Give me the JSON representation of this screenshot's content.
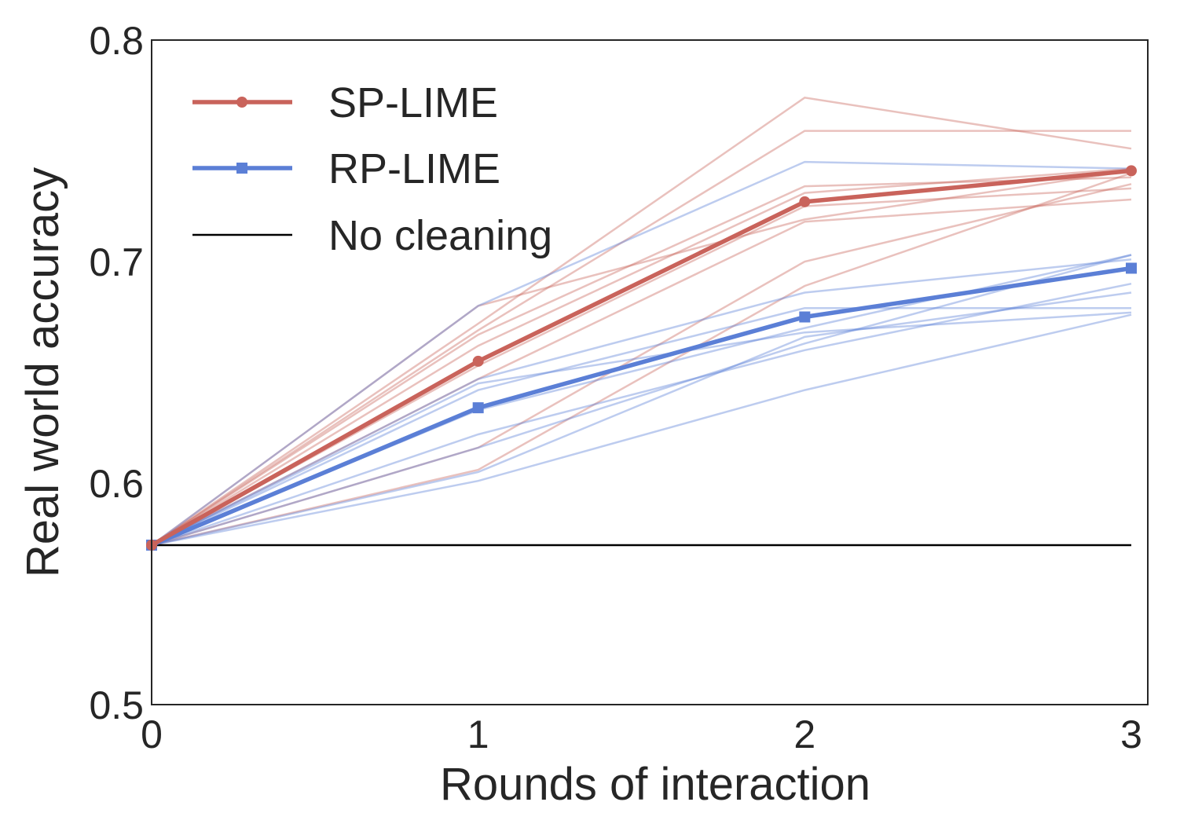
{
  "chart_data": {
    "type": "line",
    "xlabel": "Rounds of interaction",
    "ylabel": "Real world accuracy",
    "xlim": [
      0,
      3
    ],
    "ylim": [
      0.5,
      0.8
    ],
    "xticks": [
      0,
      1,
      2,
      3
    ],
    "xtick_labels": [
      "0",
      "1",
      "2",
      "3"
    ],
    "yticks": [
      0.5,
      0.6,
      0.7,
      0.8
    ],
    "ytick_labels": [
      "0.5",
      "0.6",
      "0.7",
      "0.8"
    ],
    "grid": false,
    "legend_position": "top-left",
    "x": [
      0,
      1,
      2,
      3
    ],
    "series": [
      {
        "name": "SP-LIME",
        "color": "#c9635b",
        "marker": "circle",
        "values": [
          0.572,
          0.655,
          0.727,
          0.741
        ]
      },
      {
        "name": "RP-LIME",
        "color": "#5b7fd6",
        "marker": "square",
        "values": [
          0.572,
          0.634,
          0.675,
          0.697
        ]
      },
      {
        "name": "No cleaning",
        "color": "#000000",
        "marker": "none",
        "values": [
          0.572,
          0.572,
          0.572,
          0.572
        ]
      }
    ],
    "individual_runs": {
      "SP-LIME": {
        "color": "#c9635b",
        "runs": [
          [
            0.572,
            0.68,
            0.719,
            0.741
          ],
          [
            0.572,
            0.672,
            0.774,
            0.751
          ],
          [
            0.572,
            0.669,
            0.759,
            0.759
          ],
          [
            0.572,
            0.667,
            0.734,
            0.738
          ],
          [
            0.572,
            0.662,
            0.731,
            0.742
          ],
          [
            0.572,
            0.653,
            0.725,
            0.733
          ],
          [
            0.572,
            0.647,
            0.718,
            0.728
          ],
          [
            0.572,
            0.616,
            0.7,
            0.735
          ],
          [
            0.572,
            0.606,
            0.689,
            0.74
          ]
        ]
      },
      "RP-LIME": {
        "color": "#5b7fd6",
        "runs": [
          [
            0.572,
            0.68,
            0.745,
            0.742
          ],
          [
            0.572,
            0.647,
            0.686,
            0.701
          ],
          [
            0.572,
            0.645,
            0.668,
            0.677
          ],
          [
            0.572,
            0.642,
            0.679,
            0.679
          ],
          [
            0.572,
            0.633,
            0.67,
            0.703
          ],
          [
            0.572,
            0.622,
            0.66,
            0.69
          ],
          [
            0.572,
            0.616,
            0.663,
            0.703
          ],
          [
            0.572,
            0.605,
            0.666,
            0.686
          ],
          [
            0.572,
            0.601,
            0.642,
            0.676
          ]
        ]
      }
    }
  }
}
